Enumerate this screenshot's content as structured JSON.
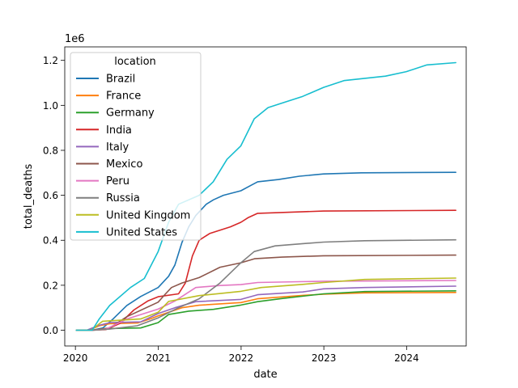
{
  "chart_data": {
    "type": "line",
    "title": "",
    "xlabel": "date",
    "ylabel": "total_deaths",
    "y_offset_label": "1e6",
    "y_scale_factor": 1000000,
    "xlim": [
      "2019-11-15",
      "2024-09-20"
    ],
    "ylim": [
      -0.07,
      1.26
    ],
    "x_ticks": [
      {
        "label": "2020",
        "value": "2020-01-01"
      },
      {
        "label": "2021",
        "value": "2021-01-01"
      },
      {
        "label": "2022",
        "value": "2022-01-01"
      },
      {
        "label": "2023",
        "value": "2023-01-01"
      },
      {
        "label": "2024",
        "value": "2024-01-01"
      }
    ],
    "y_ticks": [
      {
        "label": "0.0",
        "value": 0.0
      },
      {
        "label": "0.2",
        "value": 0.2
      },
      {
        "label": "0.4",
        "value": 0.4
      },
      {
        "label": "0.6",
        "value": 0.6
      },
      {
        "label": "0.8",
        "value": 0.8
      },
      {
        "label": "1.0",
        "value": 1.0
      },
      {
        "label": "1.2",
        "value": 1.2
      }
    ],
    "legend": {
      "title": "location",
      "position": "upper-left"
    },
    "grid": false,
    "series": [
      {
        "name": "Brazil",
        "color": "#1f77b4",
        "points": [
          [
            "2020-01-05",
            0
          ],
          [
            "2020-03-15",
            0
          ],
          [
            "2020-05-01",
            0.01
          ],
          [
            "2020-06-15",
            0.05
          ],
          [
            "2020-08-15",
            0.11
          ],
          [
            "2020-10-15",
            0.15
          ],
          [
            "2020-12-31",
            0.19
          ],
          [
            "2021-02-15",
            0.24
          ],
          [
            "2021-03-15",
            0.29
          ],
          [
            "2021-04-15",
            0.39
          ],
          [
            "2021-05-15",
            0.46
          ],
          [
            "2021-06-15",
            0.51
          ],
          [
            "2021-07-31",
            0.56
          ],
          [
            "2021-09-01",
            0.58
          ],
          [
            "2021-10-15",
            0.6
          ],
          [
            "2021-12-31",
            0.62
          ],
          [
            "2022-02-15",
            0.645
          ],
          [
            "2022-03-15",
            0.66
          ],
          [
            "2022-06-15",
            0.67
          ],
          [
            "2022-09-15",
            0.685
          ],
          [
            "2022-12-31",
            0.695
          ],
          [
            "2023-06-15",
            0.7
          ],
          [
            "2024-08-05",
            0.702
          ]
        ]
      },
      {
        "name": "France",
        "color": "#ff7f0e",
        "points": [
          [
            "2020-01-05",
            0
          ],
          [
            "2020-03-01",
            0
          ],
          [
            "2020-04-15",
            0.02
          ],
          [
            "2020-06-01",
            0.029
          ],
          [
            "2020-10-01",
            0.032
          ],
          [
            "2020-11-30",
            0.052
          ],
          [
            "2020-12-31",
            0.064
          ],
          [
            "2021-04-15",
            0.1
          ],
          [
            "2021-06-30",
            0.111
          ],
          [
            "2021-12-31",
            0.123
          ],
          [
            "2022-03-15",
            0.14
          ],
          [
            "2022-09-30",
            0.155
          ],
          [
            "2022-12-31",
            0.16
          ],
          [
            "2023-06-30",
            0.166
          ],
          [
            "2024-08-05",
            0.168
          ]
        ]
      },
      {
        "name": "Germany",
        "color": "#2ca02c",
        "points": [
          [
            "2020-01-05",
            0
          ],
          [
            "2020-03-15",
            0
          ],
          [
            "2020-05-01",
            0.007
          ],
          [
            "2020-10-15",
            0.01
          ],
          [
            "2020-12-31",
            0.034
          ],
          [
            "2021-02-15",
            0.07
          ],
          [
            "2021-05-15",
            0.085
          ],
          [
            "2021-09-01",
            0.093
          ],
          [
            "2021-12-31",
            0.112
          ],
          [
            "2022-03-15",
            0.127
          ],
          [
            "2022-06-30",
            0.141
          ],
          [
            "2022-12-31",
            0.162
          ],
          [
            "2023-06-30",
            0.172
          ],
          [
            "2024-08-05",
            0.175
          ]
        ]
      },
      {
        "name": "India",
        "color": "#d62728",
        "points": [
          [
            "2020-01-05",
            0
          ],
          [
            "2020-03-15",
            0
          ],
          [
            "2020-05-15",
            0.003
          ],
          [
            "2020-07-15",
            0.03
          ],
          [
            "2020-09-15",
            0.09
          ],
          [
            "2020-11-15",
            0.13
          ],
          [
            "2020-12-31",
            0.149
          ],
          [
            "2021-03-31",
            0.162
          ],
          [
            "2021-04-30",
            0.21
          ],
          [
            "2021-05-31",
            0.33
          ],
          [
            "2021-06-30",
            0.4
          ],
          [
            "2021-08-15",
            0.43
          ],
          [
            "2021-11-15",
            0.46
          ],
          [
            "2021-12-31",
            0.48
          ],
          [
            "2022-01-31",
            0.5
          ],
          [
            "2022-03-15",
            0.52
          ],
          [
            "2022-12-31",
            0.53
          ],
          [
            "2024-08-05",
            0.533
          ]
        ]
      },
      {
        "name": "Italy",
        "color": "#9467bd",
        "points": [
          [
            "2020-01-05",
            0
          ],
          [
            "2020-02-20",
            0
          ],
          [
            "2020-04-15",
            0.022
          ],
          [
            "2020-06-01",
            0.034
          ],
          [
            "2020-10-15",
            0.037
          ],
          [
            "2020-12-31",
            0.074
          ],
          [
            "2021-03-15",
            0.1
          ],
          [
            "2021-06-15",
            0.127
          ],
          [
            "2021-12-31",
            0.137
          ],
          [
            "2022-03-15",
            0.158
          ],
          [
            "2022-09-30",
            0.17
          ],
          [
            "2022-12-31",
            0.184
          ],
          [
            "2023-06-30",
            0.19
          ],
          [
            "2024-08-05",
            0.196
          ]
        ]
      },
      {
        "name": "Mexico",
        "color": "#8c564b",
        "points": [
          [
            "2020-01-05",
            0
          ],
          [
            "2020-03-15",
            0
          ],
          [
            "2020-06-01",
            0.01
          ],
          [
            "2020-08-15",
            0.06
          ],
          [
            "2020-12-31",
            0.125
          ],
          [
            "2021-01-31",
            0.16
          ],
          [
            "2021-02-28",
            0.19
          ],
          [
            "2021-04-15",
            0.21
          ],
          [
            "2021-06-30",
            0.234
          ],
          [
            "2021-09-30",
            0.28
          ],
          [
            "2021-12-31",
            0.3
          ],
          [
            "2022-03-01",
            0.318
          ],
          [
            "2022-06-30",
            0.325
          ],
          [
            "2022-12-31",
            0.331
          ],
          [
            "2024-08-05",
            0.334
          ]
        ]
      },
      {
        "name": "Peru",
        "color": "#e377c2",
        "points": [
          [
            "2020-01-05",
            0
          ],
          [
            "2020-03-15",
            0
          ],
          [
            "2020-05-15",
            0.005
          ],
          [
            "2020-08-15",
            0.05
          ],
          [
            "2020-12-31",
            0.094
          ],
          [
            "2021-03-15",
            0.13
          ],
          [
            "2021-06-15",
            0.19
          ],
          [
            "2021-09-30",
            0.199
          ],
          [
            "2021-12-31",
            0.203
          ],
          [
            "2022-03-15",
            0.212
          ],
          [
            "2022-12-31",
            0.218
          ],
          [
            "2024-08-05",
            0.221
          ]
        ]
      },
      {
        "name": "Russia",
        "color": "#7f7f7f",
        "points": [
          [
            "2020-01-05",
            0
          ],
          [
            "2020-03-20",
            0
          ],
          [
            "2020-06-01",
            0.005
          ],
          [
            "2020-09-30",
            0.02
          ],
          [
            "2020-12-31",
            0.055
          ],
          [
            "2021-03-31",
            0.1
          ],
          [
            "2021-06-30",
            0.14
          ],
          [
            "2021-09-30",
            0.21
          ],
          [
            "2021-12-31",
            0.3
          ],
          [
            "2022-02-28",
            0.35
          ],
          [
            "2022-05-31",
            0.375
          ],
          [
            "2022-09-30",
            0.385
          ],
          [
            "2022-12-31",
            0.392
          ],
          [
            "2023-06-30",
            0.398
          ],
          [
            "2024-08-05",
            0.402
          ]
        ]
      },
      {
        "name": "United Kingdom",
        "color": "#bcbd22",
        "points": [
          [
            "2020-01-05",
            0
          ],
          [
            "2020-03-10",
            0
          ],
          [
            "2020-04-30",
            0.04
          ],
          [
            "2020-10-15",
            0.05
          ],
          [
            "2020-12-31",
            0.08
          ],
          [
            "2021-02-15",
            0.128
          ],
          [
            "2021-06-30",
            0.154
          ],
          [
            "2021-12-31",
            0.173
          ],
          [
            "2022-03-31",
            0.19
          ],
          [
            "2022-09-30",
            0.204
          ],
          [
            "2022-12-31",
            0.212
          ],
          [
            "2023-06-30",
            0.226
          ],
          [
            "2024-08-05",
            0.232
          ]
        ]
      },
      {
        "name": "United States",
        "color": "#17becf",
        "points": [
          [
            "2020-01-05",
            0
          ],
          [
            "2020-03-15",
            0
          ],
          [
            "2020-04-15",
            0.05
          ],
          [
            "2020-05-31",
            0.11
          ],
          [
            "2020-08-31",
            0.19
          ],
          [
            "2020-10-31",
            0.23
          ],
          [
            "2020-12-31",
            0.35
          ],
          [
            "2021-02-15",
            0.48
          ],
          [
            "2021-03-31",
            0.56
          ],
          [
            "2021-06-30",
            0.6
          ],
          [
            "2021-08-31",
            0.66
          ],
          [
            "2021-10-31",
            0.76
          ],
          [
            "2021-12-31",
            0.82
          ],
          [
            "2022-02-28",
            0.94
          ],
          [
            "2022-04-30",
            0.99
          ],
          [
            "2022-09-30",
            1.04
          ],
          [
            "2022-12-31",
            1.08
          ],
          [
            "2023-03-31",
            1.11
          ],
          [
            "2023-09-30",
            1.13
          ],
          [
            "2023-12-31",
            1.15
          ],
          [
            "2024-03-31",
            1.18
          ],
          [
            "2024-08-05",
            1.19
          ]
        ]
      }
    ]
  }
}
